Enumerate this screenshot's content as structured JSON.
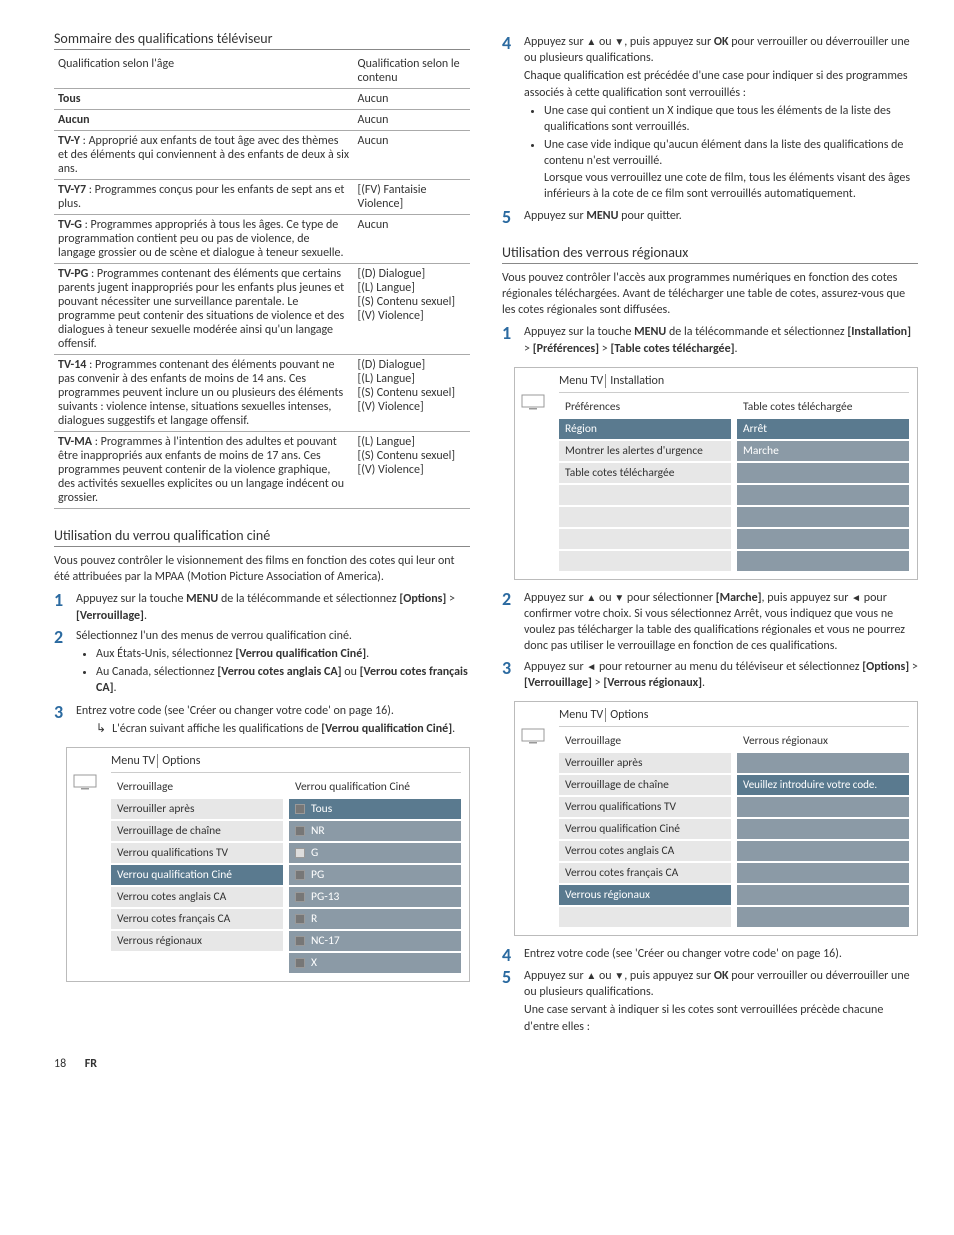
{
  "left": {
    "table_title": "Sommaire des qualifications téléviseur",
    "th1": "Qualification selon l'âge",
    "th2": "Qualification selon le contenu",
    "rows": [
      {
        "age_bold": "Tous",
        "age_rest": "",
        "content": "Aucun"
      },
      {
        "age_bold": "Aucun",
        "age_rest": "",
        "content": "Aucun"
      },
      {
        "age_bold": "TV-Y",
        "age_rest": " : Approprié aux enfants de tout âge avec des thèmes et des éléments qui conviennent à des enfants de deux à six ans.",
        "content": "Aucun"
      },
      {
        "age_bold": "TV-Y7",
        "age_rest": " : Programmes conçus pour les enfants de sept ans et plus.",
        "content": "[(FV) Fantaisie Violence]"
      },
      {
        "age_bold": "TV-G",
        "age_rest": " : Programmes appropriés à tous les âges. Ce type de programmation contient peu ou pas de violence, de langage grossier ou de scène et dialogue à teneur sexuelle.",
        "content": "Aucun"
      },
      {
        "age_bold": "TV-PG",
        "age_rest": " : Programmes contenant des éléments que certains parents jugent inappropriés pour les enfants plus jeunes et pouvant nécessiter une surveillance parentale. Le programme peut contenir des situations de violence et des dialogues à teneur sexuelle modérée ainsi qu'un langage offensif.",
        "content": "[(D) Dialogue]\n[(L) Langue]\n[(S) Contenu sexuel]\n[(V) Violence]"
      },
      {
        "age_bold": "TV-14",
        "age_rest": " : Programmes contenant des éléments pouvant ne pas convenir à des enfants de moins de 14 ans. Ces programmes peuvent inclure un ou plusieurs des éléments suivants : violence intense, situations sexuelles intenses, dialogues suggestifs et langage offensif.",
        "content": "[(D) Dialogue]\n[(L) Langue]\n[(S) Contenu sexuel]\n[(V) Violence]"
      },
      {
        "age_bold": "TV-MA",
        "age_rest": " : Programmes à l'intention des adultes et pouvant être inappropriés aux enfants de moins de 17 ans. Ces programmes peuvent contenir de la violence graphique, des activités sexuelles explicites ou un langage indécent ou grossier.",
        "content": "[(L) Langue]\n[(S) Contenu sexuel]\n[(V) Violence]"
      }
    ],
    "sec2_title": "Utilisation du verrou qualification ciné",
    "sec2_intro": "Vous pouvez contrôler le visionnement des films en fonction des cotes qui leur ont été attribuées par la MPAA (Motion Picture Association of America).",
    "step1_a": "Appuyez sur la touche ",
    "step1_b": "MENU",
    "step1_c": " de la télécommande et sélectionnez ",
    "step1_d": "[Options]",
    "step1_e": " > ",
    "step1_f": "[Verrouillage]",
    "step1_g": ".",
    "step2": "Sélectionnez l'un des menus de verrou qualification ciné.",
    "step2_b1_a": "Aux États-Unis, sélectionnez ",
    "step2_b1_b": "[Verrou qualification Ciné]",
    "step2_b1_c": ".",
    "step2_b2_a": "Au Canada, sélectionnez ",
    "step2_b2_b": "[Verrou cotes anglais CA]",
    "step2_b2_c": " ou ",
    "step2_b2_d": "[Verrou cotes français CA]",
    "step2_b2_e": ".",
    "step3": "Entrez votre code (see 'Créer ou changer votre code' on page 16).",
    "step3_sub_a": "L'écran suivant affiche les qualifications de ",
    "step3_sub_b": "[Verrou qualification Ciné]",
    "step3_sub_c": ".",
    "menu1": {
      "crumb1": "Menu TV",
      "crumb2": "Options",
      "left_items": [
        "Verrouillage",
        "Verrouiller après",
        "Verrouillage de chaîne",
        "Verrou qualifications TV",
        "Verrou qualification Ciné",
        "Verrou cotes anglais CA",
        "Verrou cotes français CA",
        "Verrous régionaux"
      ],
      "left_sel_index": 4,
      "right_header": "Verrou qualification Ciné",
      "right_items": [
        "Tous",
        "NR",
        "G",
        "PG",
        "PG-13",
        "R",
        "NC-17",
        "X"
      ],
      "right_checked": [
        true,
        true,
        false,
        true,
        true,
        true,
        true,
        true
      ]
    }
  },
  "right": {
    "step4_a": "Appuyez sur ",
    "step4_b": " ou ",
    "step4_c": ", puis appuyez sur ",
    "step4_d": "OK",
    "step4_e": " pour verrouiller ou déverrouiller une ou plusieurs qualifications.",
    "step4_p2": "Chaque qualification est précédée d'une case pour indiquer si des programmes associés à cette qualification sont verrouillés :",
    "step4_b1": "Une case qui contient un X indique que tous les éléments de la liste des qualifications sont verrouillés.",
    "step4_b2": "Une case vide indique qu'aucun élément dans la liste des qualifications de contenu n'est verrouillé.",
    "step4_b2b": "Lorsque vous verrouillez une cote de film, tous les éléments visant des âges inférieurs à la cote de ce film sont verrouillés automatiquement.",
    "step5_a": "Appuyez sur ",
    "step5_b": "MENU",
    "step5_c": " pour quitter.",
    "sec_title": "Utilisation des verrous régionaux",
    "intro": "Vous pouvez contrôler l'accès aux programmes numériques en fonction des cotes régionales téléchargées. Avant de télécharger une table de cotes, assurez-vous que les cotes régionales sont diffusées.",
    "r_step1_a": "Appuyez sur la touche ",
    "r_step1_b": "MENU",
    "r_step1_c": " de la télécommande et sélectionnez ",
    "r_step1_d": "[Installation]",
    "r_step1_e": " > ",
    "r_step1_f": "[Préférences]",
    "r_step1_g": " > ",
    "r_step1_h": "[Table cotes téléchargée]",
    "r_step1_i": ".",
    "menu2": {
      "crumb1": "Menu TV",
      "crumb2": "Installation",
      "left_items": [
        "Préférences",
        "Région",
        "Montrer les alertes d'urgence",
        "Table cotes téléchargée"
      ],
      "left_sel_index": 1,
      "right_header": "Table cotes téléchargée",
      "right_items": [
        "Arrêt",
        "Marche"
      ],
      "right_sel_index": 0
    },
    "r_step2_a": "Appuyez sur ",
    "r_step2_b": " ou ",
    "r_step2_c": " pour sélectionner ",
    "r_step2_d": "[Marche]",
    "r_step2_e": ", puis appuyez sur ",
    "r_step2_f": " pour confirmer votre choix. Si vous sélectionnez Arrêt, vous indiquez que vous ne voulez pas télécharger la table des qualifications régionales et vous ne pourrez donc pas utiliser le verrouillage en fonction de ces qualifications.",
    "r_step3_a": "Appuyez sur ",
    "r_step3_b": " pour retourner au menu du téléviseur et sélectionnez ",
    "r_step3_c": "[Options]",
    "r_step3_d": " > ",
    "r_step3_e": "[Verrouillage]",
    "r_step3_f": " > ",
    "r_step3_g": "[Verrous régionaux]",
    "r_step3_h": ".",
    "menu3": {
      "crumb1": "Menu TV",
      "crumb2": "Options",
      "left_items": [
        "Verrouillage",
        "Verrouiller après",
        "Verrouillage de chaîne",
        "Verrou qualifications TV",
        "Verrou qualification Ciné",
        "Verrou cotes anglais CA",
        "Verrou cotes français CA",
        "Verrous régionaux"
      ],
      "left_sel_index": 7,
      "right_header": "Verrous régionaux",
      "right_msg": "Veuillez introduire votre code."
    },
    "r_step4": "Entrez votre code (see 'Créer ou changer votre code' on page 16).",
    "r_step5_a": "Appuyez sur ",
    "r_step5_b": " ou ",
    "r_step5_c": ", puis appuyez sur ",
    "r_step5_d": "OK",
    "r_step5_e": " pour verrouiller ou déverrouiller une ou plusieurs qualifications.",
    "r_step5_p2": "Une case servant à indiquer si les cotes sont verrouillées précède chacune d'entre elles :"
  },
  "footer": {
    "page": "18",
    "lang": "FR"
  }
}
